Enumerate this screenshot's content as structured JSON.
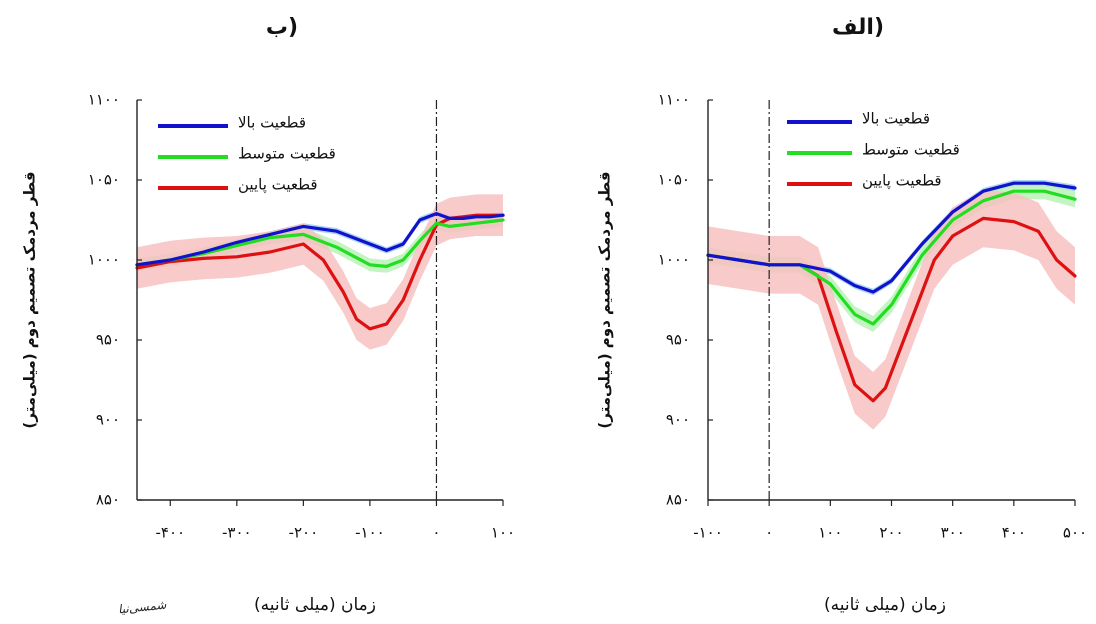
{
  "colors": {
    "high": "#1212cc",
    "medium": "#22dd22",
    "low": "#dd1111",
    "high_band": "#9bd0f2",
    "medium_band": "#b9f2b6",
    "low_band": "#f7c1c1"
  },
  "signature_text": "شمسی‌نیا",
  "chart_data": [
    {
      "panel": "left",
      "type": "line",
      "title": "ب)",
      "xlabel": "زمان (میلی ثانیه)",
      "ylabel": "قطر مردمک تصمیم دوم (میلی‌متر)",
      "xlim": [
        -450,
        100
      ],
      "ylim": [
        850,
        1100
      ],
      "xticks": [
        -400,
        -300,
        -200,
        -100,
        0,
        100
      ],
      "xtick_labels": [
        "-۴۰۰",
        "-۳۰۰",
        "-۲۰۰",
        "-۱۰۰",
        "۰",
        "۱۰۰"
      ],
      "yticks": [
        850,
        900,
        950,
        1000,
        1050,
        1100
      ],
      "ytick_labels": [
        "۸۵۰",
        "۹۰۰",
        "۹۵۰",
        "۱۰۰۰",
        "۱۰۵۰",
        "۱۱۰۰"
      ],
      "vline_x": 0,
      "legend_position": "top-left",
      "legend": [
        "قطعیت بالا",
        "قطعیت متوسط",
        "قطعیت پایین"
      ],
      "series": [
        {
          "name": "قطعیت بالا",
          "color_key": "high",
          "x": [
            -450,
            -400,
            -350,
            -300,
            -250,
            -200,
            -150,
            -100,
            -75,
            -50,
            -25,
            0,
            20,
            40,
            60,
            80,
            100
          ],
          "y": [
            997,
            1000,
            1005,
            1011,
            1016,
            1021,
            1018,
            1010,
            1006,
            1010,
            1025,
            1029,
            1026,
            1026,
            1027,
            1027,
            1028
          ],
          "band": 2
        },
        {
          "name": "قطعیت متوسط",
          "color_key": "medium",
          "x": [
            -450,
            -400,
            -350,
            -300,
            -250,
            -200,
            -150,
            -100,
            -75,
            -50,
            -25,
            0,
            20,
            40,
            60,
            80,
            100
          ],
          "y": [
            997,
            1000,
            1004,
            1009,
            1014,
            1016,
            1008,
            997,
            996,
            1000,
            1012,
            1023,
            1021,
            1022,
            1023,
            1024,
            1025
          ],
          "band": 4
        },
        {
          "name": "قطعیت پایین",
          "color_key": "low",
          "x": [
            -450,
            -400,
            -350,
            -300,
            -250,
            -200,
            -170,
            -140,
            -120,
            -100,
            -75,
            -50,
            -25,
            0,
            20,
            40,
            60,
            80,
            100
          ],
          "y": [
            995,
            999,
            1001,
            1002,
            1005,
            1010,
            1000,
            980,
            963,
            957,
            960,
            975,
            1000,
            1022,
            1026,
            1027,
            1028,
            1028,
            1028
          ],
          "band": 13
        }
      ]
    },
    {
      "panel": "right",
      "type": "line",
      "title": "الف)",
      "xlabel": "زمان (میلی ثانیه)",
      "ylabel": "قطر مردمک تصمیم دوم (میلی‌متر)",
      "xlim": [
        -100,
        500
      ],
      "ylim": [
        850,
        1100
      ],
      "xticks": [
        -100,
        0,
        100,
        200,
        300,
        400,
        500
      ],
      "xtick_labels": [
        "-۱۰۰",
        "۰",
        "۱۰۰",
        "۲۰۰",
        "۳۰۰",
        "۴۰۰",
        "۵۰۰"
      ],
      "yticks": [
        850,
        900,
        950,
        1000,
        1050,
        1100
      ],
      "ytick_labels": [
        "۸۵۰",
        "۹۰۰",
        "۹۵۰",
        "۱۰۰۰",
        "۱۰۵۰",
        "۱۱۰۰"
      ],
      "vline_x": 0,
      "legend_position": "top",
      "legend": [
        "قطعیت بالا",
        "قطعیت متوسط",
        "قطعیت پایین"
      ],
      "series": [
        {
          "name": "قطعیت بالا",
          "color_key": "high",
          "x": [
            -100,
            -50,
            0,
            50,
            100,
            140,
            170,
            200,
            250,
            300,
            350,
            400,
            450,
            500
          ],
          "y": [
            1003,
            1000,
            997,
            997,
            993,
            984,
            980,
            987,
            1010,
            1030,
            1043,
            1048,
            1048,
            1045
          ],
          "band": 2
        },
        {
          "name": "قطعیت متوسط",
          "color_key": "medium",
          "x": [
            -100,
            -50,
            0,
            50,
            100,
            140,
            170,
            200,
            250,
            300,
            350,
            400,
            450,
            500
          ],
          "y": [
            1003,
            1000,
            997,
            997,
            985,
            966,
            960,
            972,
            1003,
            1025,
            1037,
            1043,
            1043,
            1038
          ],
          "band": 5
        },
        {
          "name": "قطعیت پایین",
          "color_key": "low",
          "x": [
            -100,
            -50,
            0,
            50,
            80,
            110,
            140,
            170,
            190,
            220,
            270,
            300,
            350,
            400,
            440,
            470,
            500
          ],
          "y": [
            1003,
            1000,
            997,
            997,
            990,
            955,
            922,
            912,
            920,
            950,
            1000,
            1015,
            1026,
            1024,
            1018,
            1000,
            990
          ],
          "band": 18
        }
      ]
    }
  ]
}
